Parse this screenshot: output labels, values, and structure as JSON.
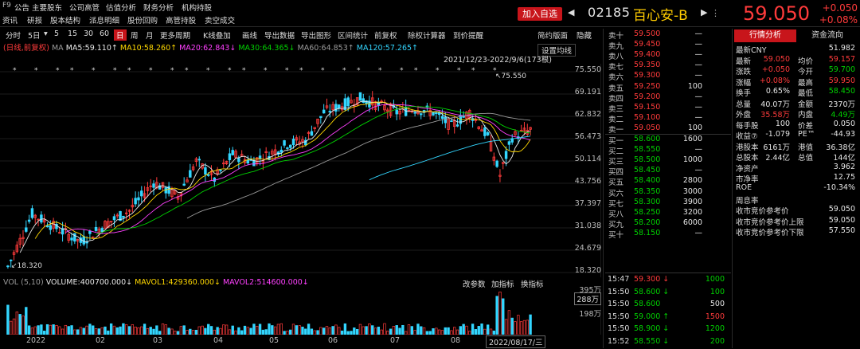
{
  "app_id": "F9",
  "menu_row1": [
    "公告",
    "主要股东",
    "公司高管",
    "估值分析",
    "财务分析",
    "机构持股"
  ],
  "menu_row2": [
    "资讯",
    "研报",
    "股本结构",
    "派息明细",
    "股份回购",
    "高管持股",
    "卖空成交"
  ],
  "header": {
    "add_fav": "加入自选",
    "prev": "◀",
    "next": "▶",
    "code": "02185",
    "name": "百心安-B",
    "dots": "⋮",
    "price": "59.050",
    "change": "+0.050",
    "change_pct": "+0.08%"
  },
  "toolbar": [
    "分时",
    "5日",
    "▾",
    "5",
    "15",
    "30",
    "60",
    "日",
    "周",
    "月",
    "更多周期",
    "K线叠加",
    "画线",
    "导出数据",
    "导出图形",
    "区间统计",
    "前复权",
    "除权计算器",
    "到价提醒",
    "简约版面",
    "隐藏"
  ],
  "ma_line": {
    "prefix": "(日线,前复权)",
    "ma": "MA",
    "ma5": "MA5:59.110↑",
    "ma10": "MA10:58.260↑",
    "ma20": "MA20:62.843↓",
    "ma30": "MA30:64.365↓",
    "ma60": "MA60:64.853↑",
    "ma120": "MA120:57.265↑"
  },
  "set_ma": "设置均线",
  "range_label": "2021/12/23-2022/9/6(173根)",
  "high_label": "↖75.550",
  "low_label": "↙18.320",
  "y_ticks": [
    "75.550",
    "69.191",
    "62.832",
    "56.473",
    "50.114",
    "43.756",
    "37.397",
    "31.038",
    "24.679",
    "18.320"
  ],
  "volume": {
    "label": "VOL (5,10)",
    "value": "VOLUME:400700.000↓",
    "mavol1": "MAVOL1:429360.000↓",
    "mavol2": "MAVOL2:514600.000↓",
    "btn_params": "改参数",
    "btn_add": "加指标",
    "btn_switch": "换指标",
    "ytick1": "395万",
    "ytick2": "288万",
    "ytick3": "198万"
  },
  "x_labels": [
    "2022",
    "02",
    "03",
    "04",
    "05",
    "06",
    "07",
    "08"
  ],
  "x_cursor": "2022/08/17/三",
  "chart_data": {
    "type": "candlestick",
    "price_range": [
      18.32,
      75.55
    ],
    "high": 75.55,
    "low": 18.32,
    "period": "2021/12/23-2022/9/6",
    "bars": 173
  },
  "order_book": {
    "asks": [
      [
        "卖十",
        "59.500",
        "—"
      ],
      [
        "卖九",
        "59.450",
        "—"
      ],
      [
        "卖八",
        "59.400",
        "—"
      ],
      [
        "卖七",
        "59.350",
        "—"
      ],
      [
        "卖六",
        "59.300",
        "—"
      ],
      [
        "卖五",
        "59.250",
        "100"
      ],
      [
        "卖四",
        "59.200",
        "—"
      ],
      [
        "卖三",
        "59.150",
        "—"
      ],
      [
        "卖二",
        "59.100",
        "—"
      ],
      [
        "卖一",
        "59.050",
        "100"
      ]
    ],
    "bids": [
      [
        "买一",
        "58.600",
        "1600"
      ],
      [
        "买二",
        "58.550",
        "—"
      ],
      [
        "买三",
        "58.500",
        "1000"
      ],
      [
        "买四",
        "58.450",
        "—"
      ],
      [
        "买五",
        "58.400",
        "2800"
      ],
      [
        "买六",
        "58.350",
        "3000"
      ],
      [
        "买七",
        "58.300",
        "3900"
      ],
      [
        "买八",
        "58.250",
        "3200"
      ],
      [
        "买九",
        "58.200",
        "6000"
      ],
      [
        "买十",
        "58.150",
        "—"
      ]
    ]
  },
  "ticks": [
    [
      "15:47",
      "59.300",
      "↓",
      "1000"
    ],
    [
      "15:50",
      "58.600",
      "↓",
      "100"
    ],
    [
      "15:50",
      "58.600",
      "",
      "500"
    ],
    [
      "15:50",
      "59.000",
      "↑",
      "1500"
    ],
    [
      "15:50",
      "58.900",
      "↓",
      "1200"
    ],
    [
      "15:52",
      "58.550",
      "↓",
      "200"
    ]
  ],
  "right_panel": {
    "tab1": "行情分析",
    "tab2": "资金流向",
    "latest_cny_label": "最新CNY",
    "latest_cny": "51.982",
    "rows": [
      [
        "最新",
        "59.050",
        "均价",
        "59.157"
      ],
      [
        "涨跌",
        "+0.050",
        "今开",
        "59.700"
      ],
      [
        "涨幅",
        "+0.08%",
        "最高",
        "59.950"
      ],
      [
        "换手",
        "0.65%",
        "最低",
        "58.450"
      ],
      [
        "总量",
        "40.07万",
        "金额",
        "2370万"
      ],
      [
        "外盘",
        "35.58万",
        "内盘",
        "4.49万"
      ],
      [
        "每手股",
        "100",
        "价差",
        "0.050"
      ],
      [
        "收益⑦",
        "-1.079",
        "PE™",
        "-44.93"
      ],
      [
        "港股本",
        "6161万",
        "港值",
        "36.38亿"
      ],
      [
        "总股本",
        "2.44亿",
        "总值",
        "144亿"
      ]
    ],
    "single": [
      [
        "净资产",
        "3.962"
      ],
      [
        "市净率",
        "12.75"
      ],
      [
        "ROE",
        "-10.34%"
      ],
      [
        "周息率",
        ""
      ],
      [
        "收市竞价参考价",
        "59.050"
      ],
      [
        "收市竞价参考价上限",
        "59.050"
      ],
      [
        "收市竞价参考价下限",
        "57.550"
      ]
    ]
  }
}
